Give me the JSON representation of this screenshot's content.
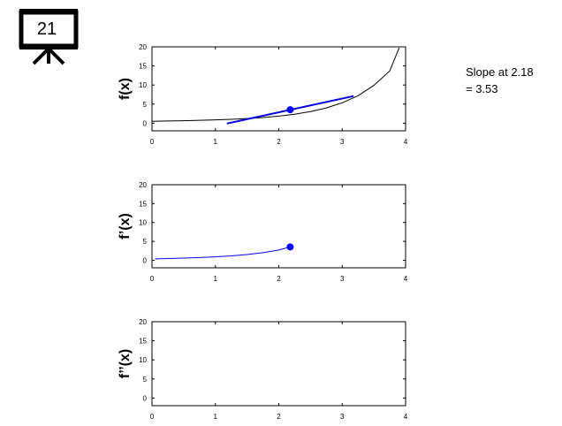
{
  "slide": {
    "number": "21",
    "icon": "presentation-board-icon"
  },
  "annotation": {
    "line1": "Slope at 2.18",
    "line2": "= 3.53"
  },
  "colors": {
    "curve": "#000000",
    "derivative": "#0000ff",
    "tangent": "#0000dd",
    "marker": "#0000ff"
  },
  "chart_data": [
    {
      "type": "line",
      "ylabel": "f(x)",
      "xlim": [
        0,
        4
      ],
      "ylim": [
        -2,
        20
      ],
      "xticks": [
        "0",
        "1",
        "2",
        "3",
        "4"
      ],
      "yticks": [
        "0",
        "5",
        "10",
        "15",
        "20"
      ],
      "grid": false,
      "series": [
        {
          "role": "curve",
          "x": [
            0,
            0.25,
            0.5,
            0.75,
            1,
            1.25,
            1.5,
            1.75,
            2,
            2.25,
            2.5,
            2.75,
            3,
            3.25,
            3.5,
            3.75,
            3.9
          ],
          "y": [
            0.5,
            0.57,
            0.65,
            0.75,
            0.87,
            1.02,
            1.22,
            1.48,
            1.85,
            2.35,
            3.05,
            4.0,
            5.35,
            7.2,
            9.9,
            13.7,
            19.8
          ]
        },
        {
          "role": "tangent",
          "x": [
            1.18,
            3.18
          ],
          "y": [
            -0.1,
            7.1
          ]
        }
      ],
      "point": {
        "x": 2.18,
        "y": 3.53
      }
    },
    {
      "type": "line",
      "ylabel": "f’(x)",
      "xlim": [
        0,
        4
      ],
      "ylim": [
        -2,
        20
      ],
      "xticks": [
        "0",
        "1",
        "2",
        "3",
        "4"
      ],
      "yticks": [
        "0",
        "5",
        "10",
        "15",
        "20"
      ],
      "grid": false,
      "series": [
        {
          "role": "derivative",
          "x": [
            0.05,
            0.25,
            0.5,
            0.75,
            1,
            1.25,
            1.5,
            1.75,
            2,
            2.18
          ],
          "y": [
            0.35,
            0.45,
            0.57,
            0.72,
            0.9,
            1.15,
            1.5,
            2.0,
            2.7,
            3.53
          ]
        }
      ],
      "point": {
        "x": 2.18,
        "y": 3.53
      }
    },
    {
      "type": "line",
      "ylabel": "f’’(x)",
      "xlim": [
        0,
        4
      ],
      "ylim": [
        -2,
        20
      ],
      "xticks": [
        "0",
        "1",
        "2",
        "3",
        "4"
      ],
      "yticks": [
        "0",
        "5",
        "10",
        "15",
        "20"
      ],
      "grid": false,
      "series": []
    }
  ]
}
